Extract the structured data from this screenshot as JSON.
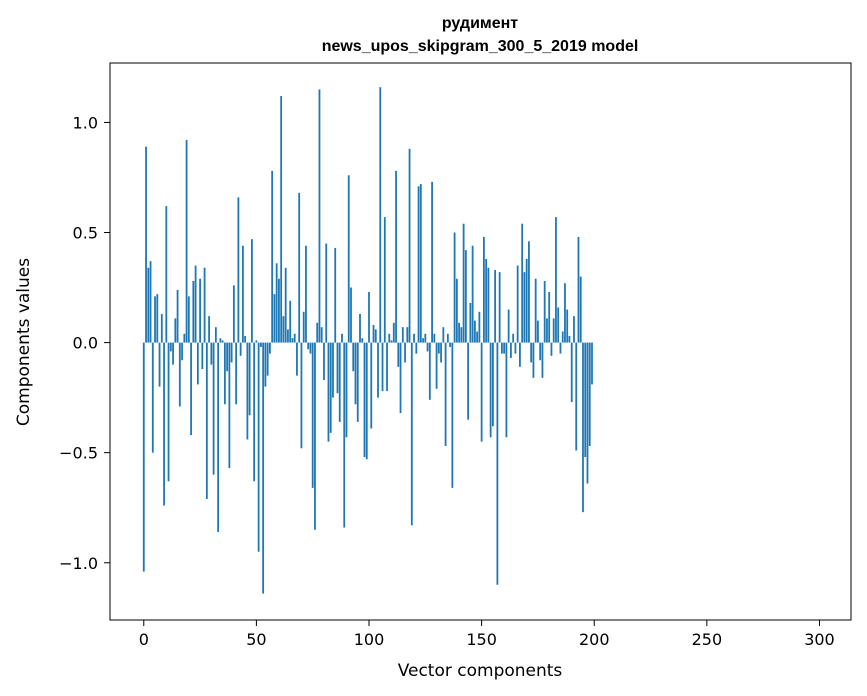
{
  "chart_data": {
    "type": "bar",
    "title": "рудимент",
    "subtitle": "news_upos_skipgram_300_5_2019 model",
    "xlabel": "Vector components",
    "ylabel": "Components values",
    "xlim": [
      -15,
      314
    ],
    "ylim": [
      -1.26,
      1.27
    ],
    "xticks": [
      0,
      50,
      100,
      150,
      200,
      250,
      300
    ],
    "xtick_labels": [
      "0",
      "50",
      "100",
      "150",
      "200",
      "250",
      "300"
    ],
    "yticks": [
      -1.0,
      -0.5,
      0.0,
      0.5,
      1.0
    ],
    "ytick_labels": [
      "−1.0",
      "−0.5",
      "0.0",
      "0.5",
      "1.0"
    ],
    "grid": false,
    "bar_color": "#1f77b4",
    "values": [
      -1.04,
      0.89,
      0.34,
      0.37,
      -0.5,
      0.21,
      0.22,
      -0.2,
      0.13,
      -0.74,
      0.62,
      -0.63,
      -0.04,
      -0.1,
      0.11,
      0.24,
      -0.29,
      -0.08,
      0.04,
      0.92,
      0.21,
      -0.42,
      0.28,
      0.35,
      -0.19,
      0.29,
      -0.12,
      0.34,
      -0.71,
      0.12,
      -0.1,
      -0.6,
      0.07,
      -0.86,
      0.02,
      0.01,
      -0.28,
      -0.13,
      -0.57,
      -0.09,
      0.26,
      -0.28,
      0.66,
      -0.06,
      0.44,
      0.03,
      -0.44,
      -0.33,
      0.47,
      -0.63,
      0.01,
      -0.95,
      -0.02,
      -1.14,
      -0.2,
      -0.15,
      -0.05,
      0.78,
      0.22,
      0.36,
      0.29,
      1.12,
      0.12,
      0.34,
      0.06,
      0.19,
      0.02,
      0.04,
      -0.15,
      0.68,
      -0.48,
      0.14,
      0.44,
      -0.03,
      -0.05,
      -0.66,
      -0.85,
      0.09,
      1.15,
      0.07,
      -0.17,
      0.45,
      -0.45,
      -0.41,
      -0.25,
      0.43,
      -0.23,
      -0.36,
      0.04,
      -0.84,
      -0.43,
      0.76,
      0.25,
      -0.13,
      -0.28,
      -0.36,
      0.13,
      0.02,
      -0.52,
      -0.53,
      0.23,
      -0.39,
      0.08,
      0.06,
      -0.25,
      1.16,
      -0.22,
      0.57,
      -0.22,
      0.04,
      0.01,
      0.09,
      0.78,
      -0.11,
      -0.32,
      0.07,
      -0.09,
      0.07,
      0.88,
      -0.83,
      0.04,
      -0.05,
      0.71,
      0.72,
      0.02,
      0.04,
      -0.04,
      -0.26,
      0.73,
      0.04,
      -0.21,
      -0.05,
      -0.09,
      0.07,
      -0.47,
      0.04,
      -0.02,
      -0.66,
      0.5,
      0.29,
      0.09,
      0.07,
      0.54,
      0.42,
      -0.35,
      0.18,
      0.44,
      0.1,
      0.05,
      0.14,
      -0.45,
      0.48,
      0.38,
      0.34,
      -0.43,
      -0.38,
      0.33,
      -1.1,
      0.32,
      -0.05,
      -0.05,
      -0.43,
      0.15,
      -0.07,
      0.04,
      -0.05,
      0.35,
      -0.11,
      0.54,
      0.32,
      0.38,
      0.46,
      -0.09,
      -0.16,
      0.29,
      0.1,
      -0.08,
      -0.16,
      0.28,
      0.11,
      0.23,
      -0.06,
      0.11,
      0.57,
      0.16,
      -0.05,
      0.05,
      0.27,
      0.15,
      0.03,
      -0.27,
      0.12,
      -0.49,
      0.48,
      0.3,
      -0.77,
      -0.52,
      -0.64,
      -0.47,
      -0.19
    ]
  }
}
